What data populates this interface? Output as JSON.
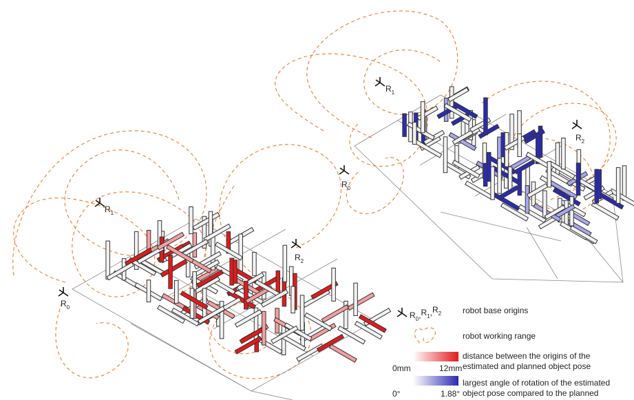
{
  "left_figure": {
    "bases": [
      {
        "symbol": "R",
        "index": "0"
      },
      {
        "symbol": "R",
        "index": "1"
      },
      {
        "symbol": "R",
        "index": "2"
      }
    ]
  },
  "right_figure": {
    "bases": [
      {
        "symbol": "R",
        "index": "0"
      },
      {
        "symbol": "R",
        "index": "1"
      },
      {
        "symbol": "R",
        "index": "2"
      }
    ]
  },
  "legend": {
    "base_origins": {
      "symbols": [
        {
          "symbol": "R",
          "index": "0"
        },
        {
          "symbol": "R",
          "index": "1"
        },
        {
          "symbol": "R",
          "index": "2"
        }
      ],
      "separator": ",",
      "label": "robot base origins"
    },
    "working_range": {
      "label": "robot working range"
    },
    "distance": {
      "lines": [
        "distance between the origins of the",
        "estimated and planned object pose"
      ],
      "scale_min": "0mm",
      "scale_max": "12mm"
    },
    "angle": {
      "lines": [
        "largest angle of rotation of the estimated",
        "object pose compared to the planned"
      ],
      "scale_min": "0°",
      "scale_max": "1.88°"
    }
  }
}
